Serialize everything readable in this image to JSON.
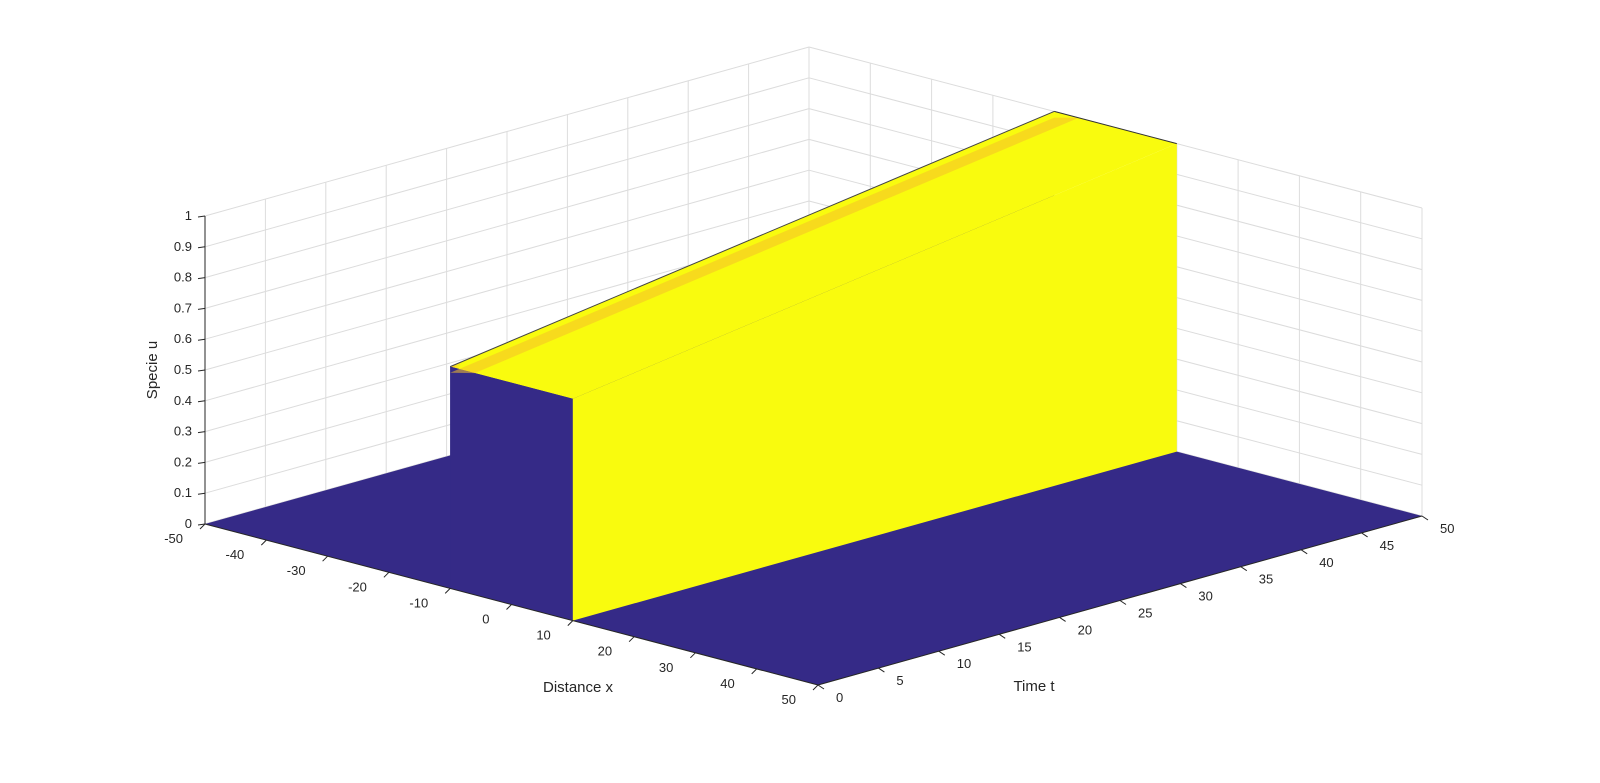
{
  "chart_data": {
    "type": "surface",
    "title": "",
    "xlabel": "Distance x",
    "ylabel": "Time t",
    "zlabel": "Specie u",
    "xlim": [
      -50,
      50
    ],
    "ylim": [
      0,
      50
    ],
    "zlim": [
      0,
      1
    ],
    "x_ticks": [
      "-50",
      "-40",
      "-30",
      "-20",
      "-10",
      "0",
      "10",
      "20",
      "30",
      "40",
      "50"
    ],
    "y_ticks": [
      "0",
      "5",
      "10",
      "15",
      "20",
      "25",
      "30",
      "35",
      "40",
      "45",
      "50"
    ],
    "z_ticks": [
      "0",
      "0.1",
      "0.2",
      "0.3",
      "0.4",
      "0.5",
      "0.6",
      "0.7",
      "0.8",
      "0.9",
      "1"
    ],
    "grid": true,
    "colormap": "parula",
    "surface": {
      "description_values": {
        "pulse_x_range": [
          -10,
          10
        ],
        "pulse_height_start": 0.72,
        "pulse_height_end": 1.0,
        "base_value": 0.0
      }
    },
    "colors": {
      "low": "#352a87",
      "high": "#f9fb0e",
      "transition": "#f5c02a"
    }
  }
}
